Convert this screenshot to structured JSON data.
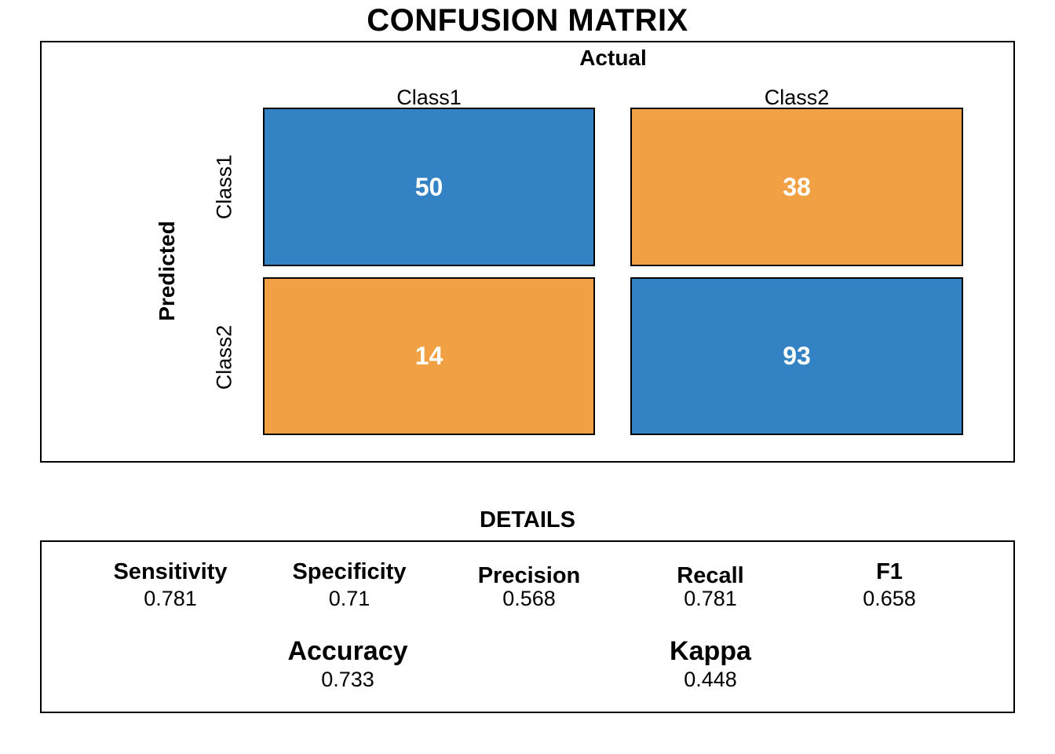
{
  "title": "CONFUSION MATRIX",
  "colors": {
    "class1_fill": "#3382C4",
    "class2_fill": "#F2A044",
    "cell_text": "#FFFFFF",
    "border": "#000000"
  },
  "matrix": {
    "top_axis_label": "Actual",
    "left_axis_label": "Predicted",
    "columns": [
      "Class1",
      "Class2"
    ],
    "rows": [
      "Class1",
      "Class2"
    ],
    "cells": [
      [
        "50",
        "38"
      ],
      [
        "14",
        "93"
      ]
    ]
  },
  "details": {
    "heading": "DETAILS",
    "metrics": [
      {
        "label": "Sensitivity",
        "value": "0.781"
      },
      {
        "label": "Specificity",
        "value": "0.71"
      },
      {
        "label": "Precision",
        "value": "0.568"
      },
      {
        "label": "Recall",
        "value": "0.781"
      },
      {
        "label": "F1",
        "value": "0.658"
      }
    ],
    "summary": [
      {
        "label": "Accuracy",
        "value": "0.733"
      },
      {
        "label": "Kappa",
        "value": "0.448"
      }
    ]
  },
  "chart_data": {
    "type": "heatmap",
    "title": "CONFUSION MATRIX",
    "xlabel": "Actual",
    "ylabel": "Predicted",
    "x_categories": [
      "Class1",
      "Class2"
    ],
    "y_categories": [
      "Class1",
      "Class2"
    ],
    "values": [
      [
        50,
        38
      ],
      [
        14,
        93
      ]
    ],
    "cell_colors": [
      [
        "#3382C4",
        "#F2A044"
      ],
      [
        "#F2A044",
        "#3382C4"
      ]
    ],
    "legend_position": "none",
    "grid": false,
    "stats": {
      "Sensitivity": 0.781,
      "Specificity": 0.71,
      "Precision": 0.568,
      "Recall": 0.781,
      "F1": 0.658,
      "Accuracy": 0.733,
      "Kappa": 0.448
    }
  }
}
